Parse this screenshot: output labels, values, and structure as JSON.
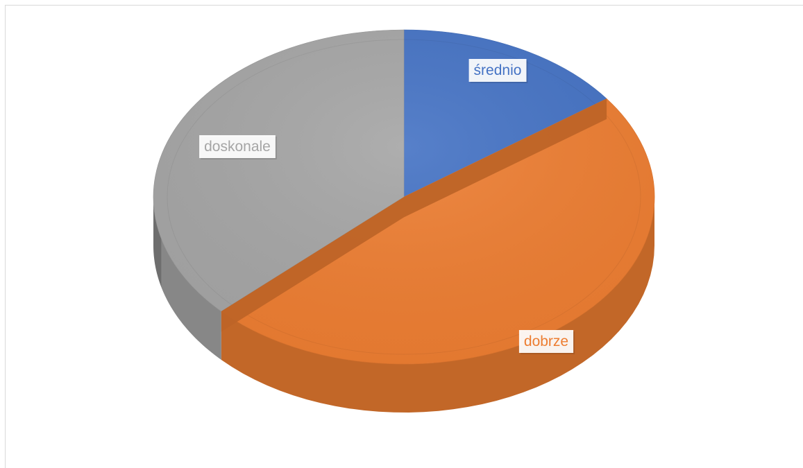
{
  "chart_data": {
    "type": "pie",
    "style": "3d-tilted",
    "categories": [
      "średnio",
      "dobrze",
      "doskonale"
    ],
    "values": [
      15,
      48,
      37
    ],
    "colors": [
      "#4472c4",
      "#ed7d31",
      "#a5a5a5"
    ],
    "labels": [
      "średnio",
      "dobrze",
      "doskonale"
    ],
    "title": "",
    "legend": "none"
  }
}
